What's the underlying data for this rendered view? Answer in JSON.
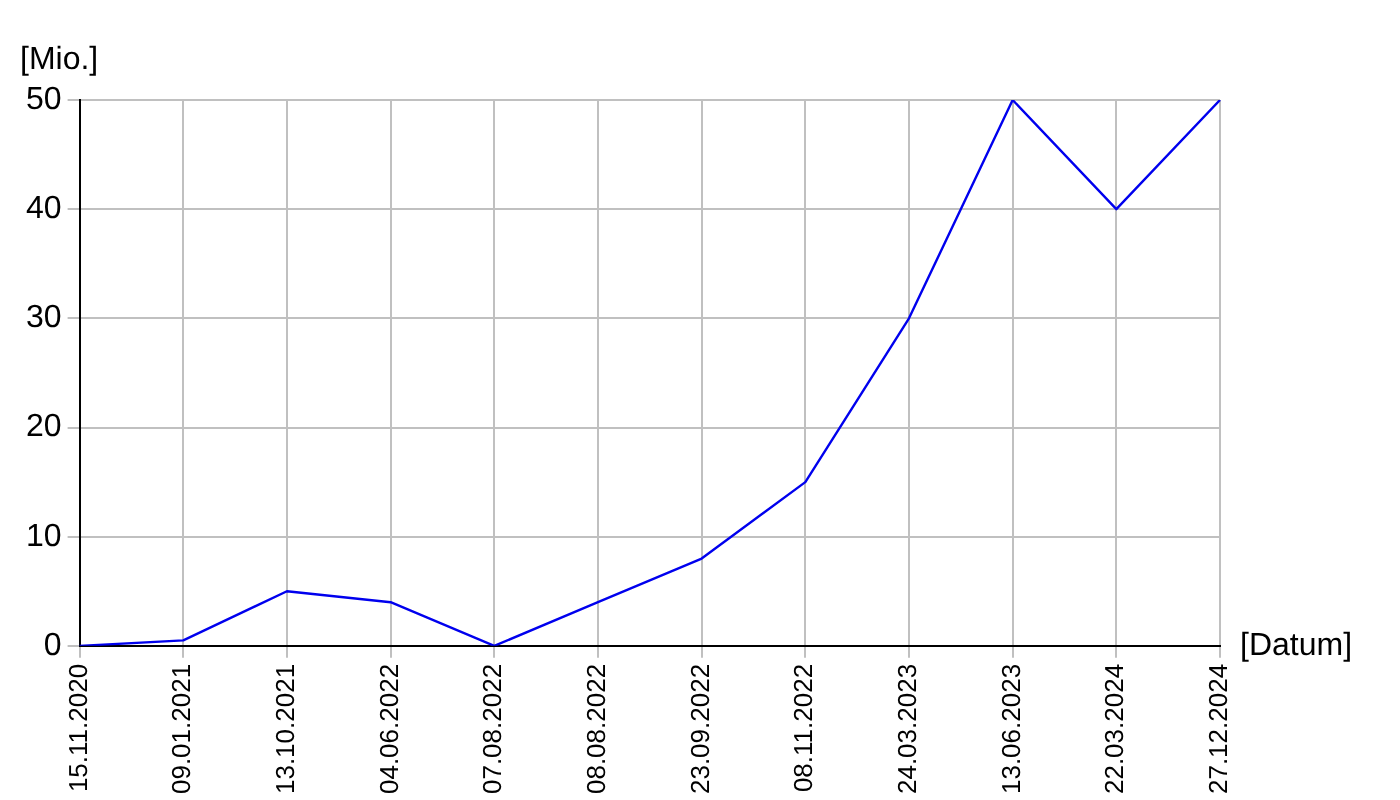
{
  "chart_data": {
    "type": "line",
    "xlabel": "[Datum]",
    "ylabel": "[Mio.]",
    "categories": [
      "15.11.2020",
      "09.01.2021",
      "13.10.2021",
      "04.06.2022",
      "07.08.2022",
      "08.08.2022",
      "23.09.2022",
      "08.11.2022",
      "24.03.2023",
      "13.06.2023",
      "22.03.2024",
      "27.12.2024"
    ],
    "series": [
      {
        "color": "#0000ee",
        "values": [
          0,
          0.5,
          5,
          4,
          0,
          4,
          8,
          15,
          30,
          50,
          40,
          50
        ]
      }
    ],
    "ylim": [
      0,
      50
    ],
    "yticks": [
      0,
      10,
      20,
      30,
      40,
      50
    ],
    "grid": true,
    "legend": false,
    "marker": "none",
    "line_style": "solid"
  }
}
